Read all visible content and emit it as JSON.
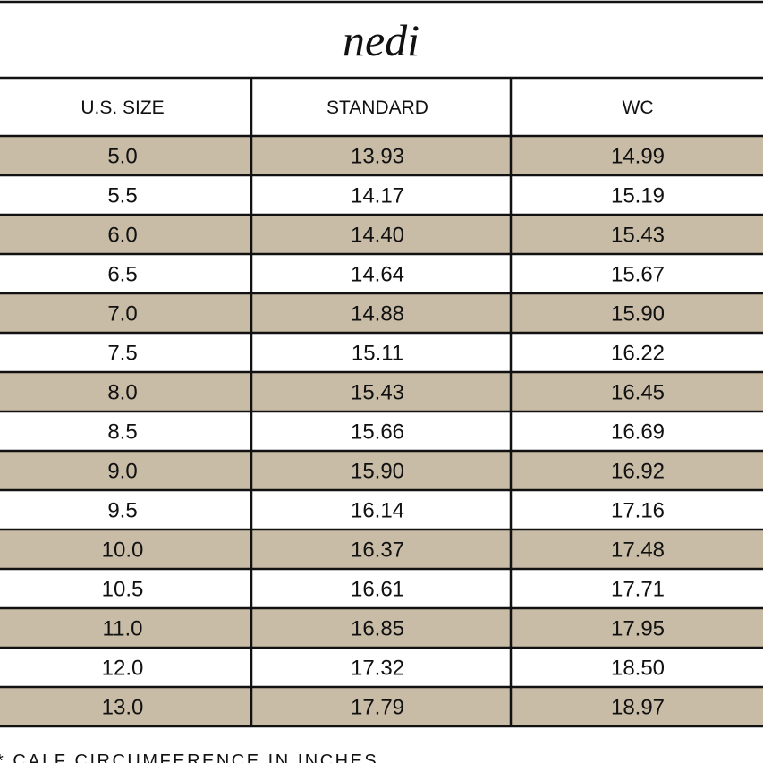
{
  "title": "nedi",
  "table": {
    "header": [
      "U.S. SIZE",
      "STANDARD",
      "WC"
    ],
    "rows": [
      [
        "5.0",
        "13.93",
        "14.99"
      ],
      [
        "5.5",
        "14.17",
        "15.19"
      ],
      [
        "6.0",
        "14.40",
        "15.43"
      ],
      [
        "6.5",
        "14.64",
        "15.67"
      ],
      [
        "7.0",
        "14.88",
        "15.90"
      ],
      [
        "7.5",
        "15.11",
        "16.22"
      ],
      [
        "8.0",
        "15.43",
        "16.45"
      ],
      [
        "8.5",
        "15.66",
        "16.69"
      ],
      [
        "9.0",
        "15.90",
        "16.92"
      ],
      [
        "9.5",
        "16.14",
        "17.16"
      ],
      [
        "10.0",
        "16.37",
        "17.48"
      ],
      [
        "10.5",
        "16.61",
        "17.71"
      ],
      [
        "11.0",
        "16.85",
        "17.95"
      ],
      [
        "12.0",
        "17.32",
        "18.50"
      ],
      [
        "13.0",
        "17.79",
        "18.97"
      ]
    ]
  },
  "footnote": "* CALF CIRCUMFERENCE IN INCHES"
}
